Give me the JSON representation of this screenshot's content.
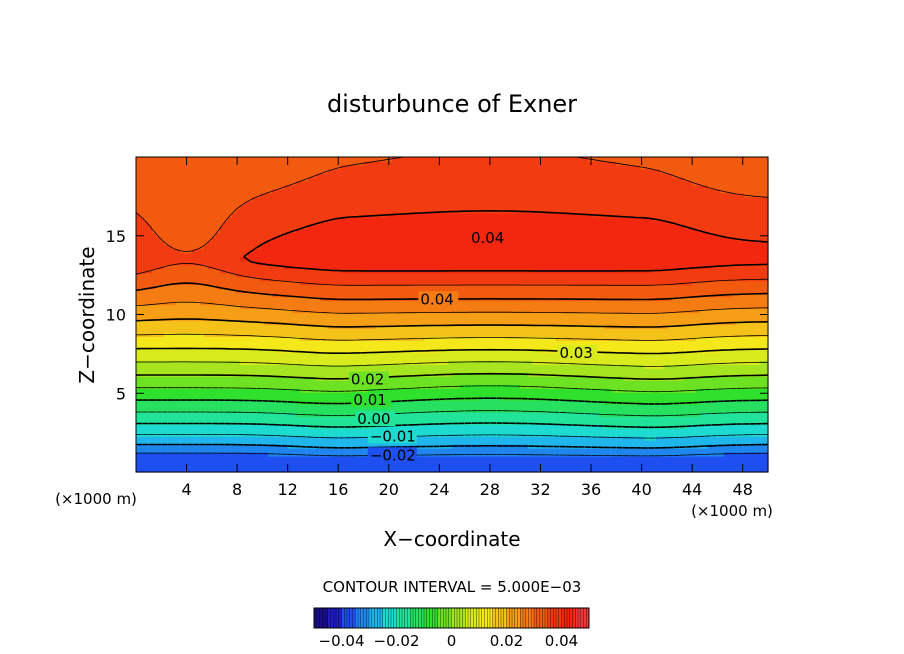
{
  "chart_data": {
    "type": "heatmap",
    "title": "disturbunce of Exner",
    "xlabel": "X−coordinate",
    "ylabel": "Z−coordinate",
    "x_unit": "(×1000 m)",
    "y_unit": "(×1000 m)",
    "xlim": [
      0,
      50
    ],
    "ylim": [
      0,
      20
    ],
    "x_ticks": [
      4,
      8,
      12,
      16,
      20,
      24,
      28,
      32,
      36,
      40,
      44,
      48
    ],
    "x_tick_labels": [
      "4",
      "8",
      "12",
      "16",
      "20",
      "24",
      "28",
      "32",
      "36",
      "40",
      "44",
      "48"
    ],
    "y_ticks": [
      5,
      10,
      15
    ],
    "y_tick_labels": [
      "5",
      "10",
      "15"
    ],
    "contour_interval_text": "CONTOUR INTERVAL = 5.000E−03",
    "contour_labels": [
      {
        "text": "0.04",
        "x": 26.5,
        "z": 14.8
      },
      {
        "text": "0.04",
        "x": 22.5,
        "z": 10.9
      },
      {
        "text": "0.03",
        "x": 33.5,
        "z": 7.5
      },
      {
        "text": "0.02",
        "x": 17.0,
        "z": 5.8
      },
      {
        "text": "0.01",
        "x": 17.2,
        "z": 4.5
      },
      {
        "text": "0.00",
        "x": 17.5,
        "z": 3.3
      },
      {
        "text": "−0.01",
        "x": 18.5,
        "z": 2.2
      },
      {
        "text": "−0.02",
        "x": 18.5,
        "z": 1.0
      }
    ],
    "colorbar": {
      "range": [
        -0.05,
        0.05
      ],
      "ticks": [
        -0.04,
        -0.02,
        0,
        0.02,
        0.04
      ],
      "tick_labels": [
        "−0.04",
        "−0.02",
        "0",
        "0.02",
        "0.04"
      ]
    },
    "value_range": [
      -0.035,
      0.044
    ],
    "field_profile": {
      "bottom_value": -0.035,
      "max_value": 0.044,
      "max_x_range": [
        17,
        40
      ],
      "max_z": 13.5,
      "top_value": 0.036,
      "corner_top_value": 0.032
    }
  }
}
